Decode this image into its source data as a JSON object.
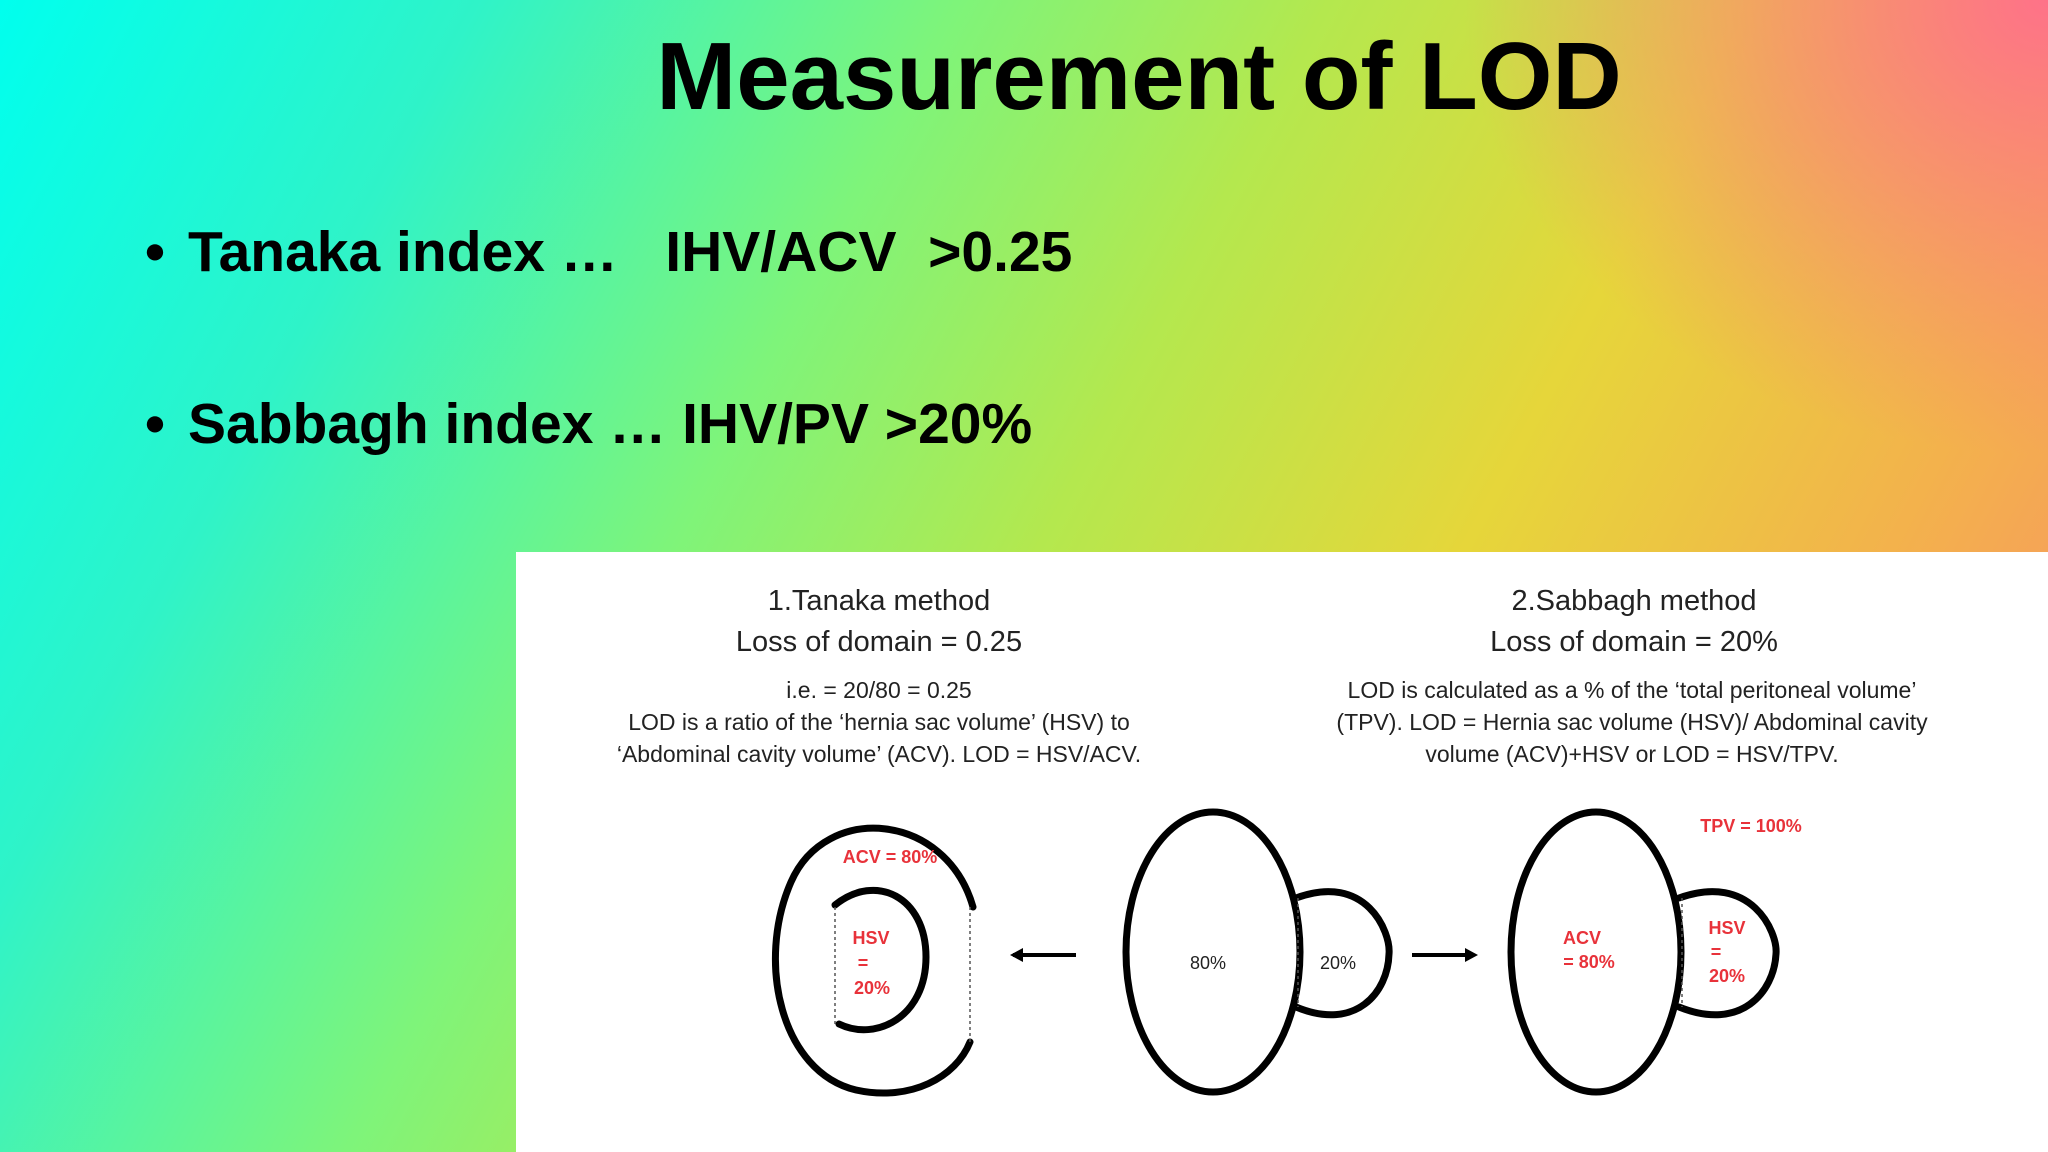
{
  "title": "Measurement of LOD",
  "bullets": [
    {
      "text": "Tanaka index …   IHV/ACV  >0.25"
    },
    {
      "text": "Sabbagh index … IHV/PV >20%"
    }
  ],
  "figure": {
    "tanaka": {
      "heading": "1.Tanaka method",
      "result": "Loss of domain = 0.25",
      "lines": [
        "i.e. = 20/80 = 0.25",
        "LOD is a ratio of the ‘hernia sac volume’ (HSV) to",
        "‘Abdominal cavity volume’ (ACV). LOD = HSV/ACV."
      ],
      "acv_label": "ACV = 80%",
      "hsv_label": [
        "HSV",
        "=",
        "20%"
      ]
    },
    "middle": {
      "left_pct": "80%",
      "right_pct": "20%"
    },
    "sabbagh": {
      "heading": "2.Sabbagh method",
      "result": "Loss of domain = 20%",
      "lines": [
        "LOD is calculated as a % of the ‘total peritoneal volume’",
        "(TPV). LOD = Hernia sac volume (HSV)/ Abdominal cavity",
        "volume (ACV)+HSV or LOD = HSV/TPV."
      ],
      "tpv_label": "TPV = 100%",
      "acv_label": [
        "ACV",
        "= 80%"
      ],
      "hsv_label": [
        "HSV",
        "=",
        "20%"
      ]
    },
    "colors": {
      "label_red": "#e8323a",
      "outline": "#000000"
    }
  }
}
